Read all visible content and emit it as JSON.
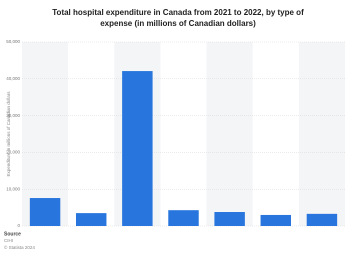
{
  "chart_data": {
    "type": "bar",
    "title": "Total hospital expenditure in Canada from 2021 to 2022, by type of expense (in millions of Canadian dollars)",
    "y_label": "Expenditure in millions of Canadian dollars",
    "values": [
      7600,
      3500,
      42100,
      4300,
      3800,
      3000,
      3300
    ],
    "color": "#2876dd",
    "ylim": [
      0,
      50000
    ],
    "yticks": [
      0,
      {
        "value": 10000,
        "label": "10,000"
      },
      {
        "value": 20000,
        "label": "20,000"
      },
      {
        "value": 30000,
        "label": "30,000"
      },
      {
        "value": 40000,
        "label": "40,000"
      },
      {
        "value": 50000,
        "label": "50,000"
      }
    ],
    "grid": true,
    "source_label": "Source",
    "source": "CIHI",
    "copyright": "© Statista 2024"
  }
}
